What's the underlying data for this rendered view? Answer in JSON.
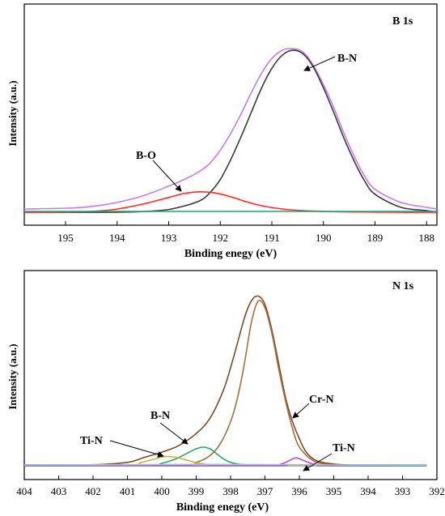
{
  "chart_data": [
    {
      "type": "line",
      "title": "B 1s",
      "xlabel": "Binding enegy (eV)",
      "ylabel": "Intensity (a.u.)",
      "xlim": [
        195.8,
        187.8
      ],
      "x_reversed": true,
      "xticks": [
        195,
        194,
        193,
        192,
        191,
        190,
        189,
        188
      ],
      "yticks_visible": false,
      "ylim": [
        0,
        1.05
      ],
      "grid": false,
      "series": [
        {
          "name": "",
          "role": "envelope",
          "color": "#c77be6",
          "x": [
            195.8,
            195,
            194.5,
            194,
            193.5,
            193,
            192.7,
            192.4,
            192.2,
            192,
            191.8,
            191.6,
            191.4,
            191.2,
            191,
            190.8,
            190.6,
            190.4,
            190.2,
            190,
            189.8,
            189.6,
            189.4,
            189.2,
            189,
            188.5,
            188,
            187.8
          ],
          "y": [
            0.02,
            0.025,
            0.035,
            0.06,
            0.1,
            0.16,
            0.2,
            0.25,
            0.3,
            0.38,
            0.48,
            0.6,
            0.73,
            0.85,
            0.94,
            0.99,
            1.0,
            0.98,
            0.9,
            0.78,
            0.64,
            0.48,
            0.34,
            0.22,
            0.14,
            0.06,
            0.03,
            0.02
          ]
        },
        {
          "name": "B-N",
          "color": "#3a3a3a",
          "x": [
            195.8,
            194,
            193.2,
            192.8,
            192.4,
            192.2,
            192,
            191.8,
            191.6,
            191.4,
            191.2,
            191,
            190.8,
            190.6,
            190.4,
            190.2,
            190,
            189.8,
            189.6,
            189.4,
            189.2,
            189,
            188.5,
            188,
            187.8
          ],
          "y": [
            0.0,
            0.0,
            0.01,
            0.03,
            0.07,
            0.12,
            0.2,
            0.32,
            0.46,
            0.61,
            0.76,
            0.88,
            0.96,
            0.99,
            0.97,
            0.89,
            0.76,
            0.61,
            0.45,
            0.31,
            0.19,
            0.11,
            0.03,
            0.01,
            0.0
          ]
        },
        {
          "name": "B-O",
          "color": "#ff2a2a",
          "x": [
            195.8,
            194.5,
            194,
            193.5,
            193,
            192.7,
            192.4,
            192.1,
            191.8,
            191.5,
            191.2,
            190.8,
            190.4,
            190,
            189.5,
            188.5,
            187.8
          ],
          "y": [
            0.0,
            0.005,
            0.02,
            0.05,
            0.09,
            0.115,
            0.125,
            0.118,
            0.095,
            0.065,
            0.04,
            0.02,
            0.01,
            0.005,
            0.002,
            0.0,
            0.0
          ]
        },
        {
          "name": "",
          "role": "baseline",
          "color": "#1aa57a",
          "x": [
            195.8,
            187.8
          ],
          "y": [
            0.005,
            0.005
          ]
        }
      ],
      "annotations": [
        {
          "label": "B-N",
          "points_to": {
            "x": 190.55,
            "y": 0.95
          }
        },
        {
          "label": "B-O",
          "points_to": {
            "x": 192.5,
            "y": 0.125
          }
        }
      ]
    },
    {
      "type": "line",
      "title": "N 1s",
      "xlabel": "Binding enegy (eV)",
      "ylabel": "Intensity (a.u.)",
      "xlim": [
        404,
        392
      ],
      "x_reversed": true,
      "xticks": [
        404,
        403,
        402,
        401,
        400,
        399,
        398,
        397,
        396,
        395,
        394,
        393,
        392
      ],
      "yticks_visible": false,
      "ylim": [
        0,
        1.05
      ],
      "grid": false,
      "series": [
        {
          "name": "",
          "role": "envelope",
          "color": "#7b4a2a",
          "x": [
            404,
            402,
            401,
            400.5,
            400,
            399.5,
            399,
            398.6,
            398.2,
            397.9,
            397.6,
            397.4,
            397.2,
            397.0,
            396.8,
            396.6,
            396.4,
            396.2,
            396.0,
            395.8,
            395.5,
            395,
            394.5,
            393.5,
            392.3
          ],
          "y": [
            0.005,
            0.006,
            0.02,
            0.05,
            0.08,
            0.12,
            0.19,
            0.28,
            0.45,
            0.65,
            0.87,
            0.97,
            1.0,
            0.95,
            0.8,
            0.6,
            0.4,
            0.26,
            0.16,
            0.08,
            0.03,
            0.01,
            0.005,
            0.005,
            0.005
          ]
        },
        {
          "name": "Cr-N",
          "color": "#a0723c",
          "x": [
            404,
            399.5,
            399,
            398.6,
            398.3,
            398,
            397.8,
            397.6,
            397.4,
            397.2,
            397.0,
            396.8,
            396.6,
            396.4,
            396.2,
            396,
            395.6,
            395.2,
            394.5,
            392.3
          ],
          "y": [
            0.0,
            0.005,
            0.02,
            0.06,
            0.13,
            0.26,
            0.4,
            0.6,
            0.84,
            0.97,
            0.93,
            0.78,
            0.57,
            0.38,
            0.22,
            0.11,
            0.03,
            0.01,
            0.0,
            0.0
          ]
        },
        {
          "name": "B-N",
          "color": "#2fa56a",
          "x": [
            404,
            400.5,
            400,
            399.6,
            399.3,
            399,
            398.8,
            398.6,
            398.4,
            398.2,
            398,
            397.7,
            397.3,
            396.8,
            395,
            392.3
          ],
          "y": [
            0.0,
            0.003,
            0.015,
            0.04,
            0.07,
            0.1,
            0.11,
            0.1,
            0.07,
            0.04,
            0.02,
            0.008,
            0.003,
            0.0,
            0.0,
            0.0
          ]
        },
        {
          "name": "Ti-N",
          "color": "#c9b24a",
          "x": [
            404,
            401,
            400.6,
            400.2,
            399.9,
            399.6,
            399.3,
            399,
            398.7,
            398.3,
            397.8,
            392.3
          ],
          "y": [
            0.0,
            0.005,
            0.02,
            0.04,
            0.055,
            0.05,
            0.035,
            0.018,
            0.008,
            0.002,
            0.0,
            0.0
          ]
        },
        {
          "name": "Ti-N",
          "color": "#b44ae0",
          "x": [
            404,
            397,
            396.6,
            396.4,
            396.2,
            396.1,
            396.0,
            395.8,
            395.6,
            395.4,
            395.2,
            392.3
          ],
          "y": [
            0.0,
            0.0,
            0.006,
            0.02,
            0.04,
            0.047,
            0.042,
            0.025,
            0.01,
            0.003,
            0.0,
            0.0
          ]
        },
        {
          "name": "",
          "role": "baseline",
          "color": "#8fc7e6",
          "x": [
            404,
            401,
            399,
            397,
            395,
            393,
            392.3
          ],
          "y": [
            0.005,
            0.006,
            0.008,
            0.007,
            0.005,
            0.004,
            0.004
          ]
        }
      ],
      "annotations": [
        {
          "label": "Cr-N",
          "points_to": {
            "x": 396.4,
            "y": 0.35
          }
        },
        {
          "label": "B-N",
          "points_to": {
            "x": 398.85,
            "y": 0.1
          }
        },
        {
          "label": "Ti-N",
          "points_to": {
            "x": 399.7,
            "y": 0.05
          }
        },
        {
          "label": "Ti-N",
          "points_to": {
            "x": 396.0,
            "y": 0.03
          }
        }
      ]
    }
  ]
}
